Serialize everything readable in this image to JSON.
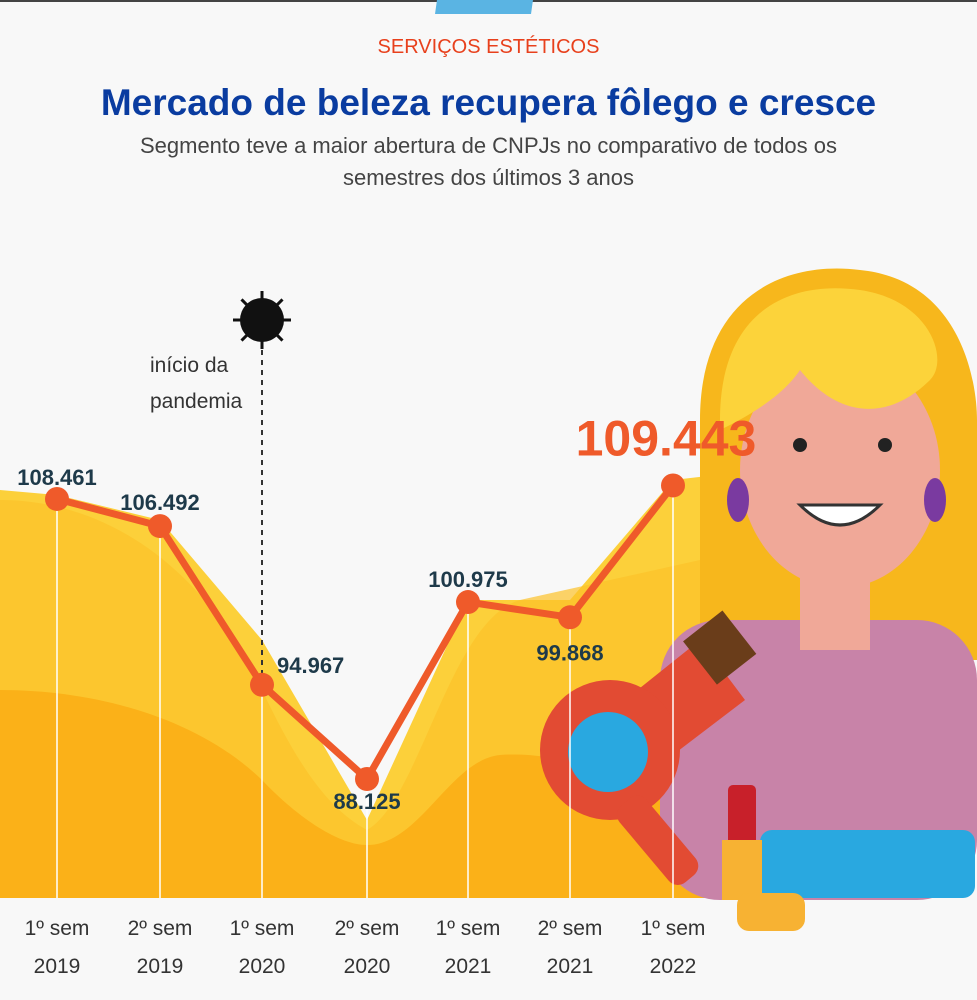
{
  "header": {
    "kicker": "SERVIÇOS ESTÉTICOS",
    "title": "Mercado de beleza recupera fôlego e cresce",
    "subtitle": "Segmento teve a maior abertura de CNPJs no comparativo de todos os semestres dos últimos 3 anos"
  },
  "annotation": {
    "text_line1": "início da",
    "text_line2": "pandemia",
    "icon": "virus-icon"
  },
  "colors": {
    "line": "#ef5a2a",
    "label": "#1e3a4a",
    "highlight": "#ef5a2a",
    "area_back": "#fcd03a",
    "area_front": "#fbb118"
  },
  "chart_data": {
    "type": "line",
    "categories": [
      "1º sem 2019",
      "2º sem 2019",
      "1º sem 2020",
      "2º sem 2020",
      "1º sem 2021",
      "2º sem 2021",
      "1º sem 2022"
    ],
    "category_lines": [
      [
        "1º sem",
        "2019"
      ],
      [
        "2º sem",
        "2019"
      ],
      [
        "1º sem",
        "2020"
      ],
      [
        "2º sem",
        "2020"
      ],
      [
        "1º sem",
        "2021"
      ],
      [
        "2º sem",
        "2021"
      ],
      [
        "1º sem",
        "2022"
      ]
    ],
    "values": [
      108461,
      106492,
      94967,
      88125,
      100975,
      99868,
      109443
    ],
    "data_labels": [
      "108.461",
      "106.492",
      "94.967",
      "88.125",
      "100.975",
      "99.868",
      "109.443"
    ],
    "title": "Mercado de beleza recupera fôlego e cresce",
    "xlabel": "",
    "ylabel": "",
    "grid": false
  }
}
